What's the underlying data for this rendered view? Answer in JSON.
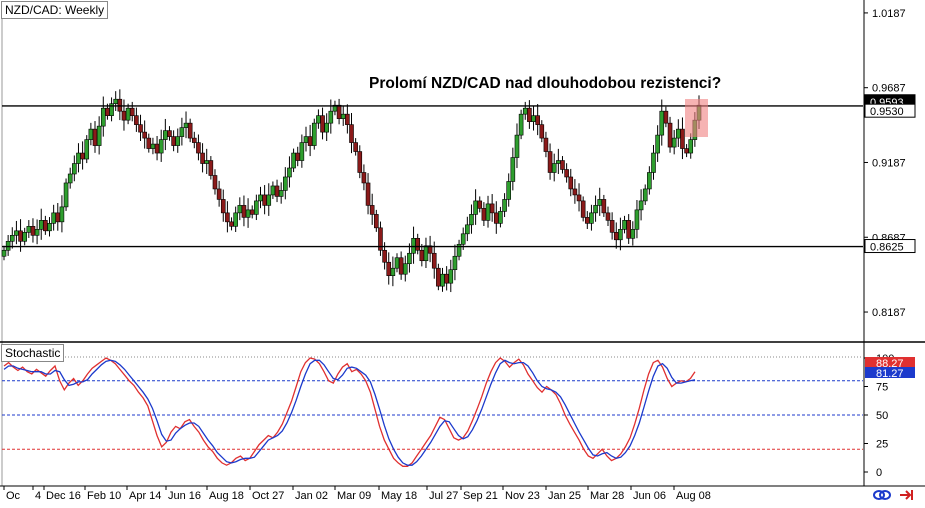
{
  "window_title": "NZD/CAD: Weekly",
  "indicator_title": "Stochastic",
  "headline": "Prolomí NZD/CAD nad dlouhodobou rezistenci?",
  "chart_data": [
    {
      "type": "candlestick",
      "title": "NZD/CAD: Weekly",
      "y_ticks": [
        "1.0187",
        "0.9687",
        "0.9187",
        "0.8687",
        "0.8187"
      ],
      "y_tick_values": [
        1.0187,
        0.9687,
        0.9187,
        0.8687,
        0.8187
      ],
      "ylim": [
        0.8,
        1.026
      ],
      "x_labels": [
        "Oc",
        "4",
        "Dec 16",
        "Feb 10",
        "Apr 14",
        "Jun 16",
        "Aug 18",
        "Oct 27",
        "Jan 02",
        "Mar 09",
        "May 18",
        "Jul 27",
        "Sep 21",
        "Nov 23",
        "Jan 25",
        "Mar 28",
        "Jun 06",
        "Aug 08"
      ],
      "price_labels": [
        {
          "text": "0.9593",
          "value": 0.9593
        },
        {
          "text": "0.9530",
          "value": 0.953
        },
        {
          "text": "0.8625",
          "value": 0.8625
        }
      ],
      "horizontal_levels": [
        0.9565,
        0.8625
      ],
      "closes": [
        0.86,
        0.866,
        0.87,
        0.873,
        0.866,
        0.872,
        0.876,
        0.87,
        0.874,
        0.88,
        0.873,
        0.878,
        0.885,
        0.879,
        0.889,
        0.905,
        0.911,
        0.918,
        0.925,
        0.921,
        0.934,
        0.941,
        0.93,
        0.943,
        0.955,
        0.95,
        0.958,
        0.961,
        0.953,
        0.947,
        0.955,
        0.95,
        0.944,
        0.939,
        0.935,
        0.928,
        0.931,
        0.925,
        0.934,
        0.94,
        0.936,
        0.93,
        0.936,
        0.942,
        0.945,
        0.935,
        0.932,
        0.925,
        0.918,
        0.92,
        0.91,
        0.901,
        0.894,
        0.885,
        0.879,
        0.876,
        0.885,
        0.89,
        0.882,
        0.887,
        0.884,
        0.893,
        0.897,
        0.89,
        0.897,
        0.903,
        0.896,
        0.9,
        0.909,
        0.915,
        0.925,
        0.92,
        0.932,
        0.936,
        0.93,
        0.945,
        0.95,
        0.939,
        0.945,
        0.953,
        0.957,
        0.948,
        0.951,
        0.944,
        0.932,
        0.926,
        0.912,
        0.905,
        0.89,
        0.884,
        0.875,
        0.86,
        0.852,
        0.843,
        0.848,
        0.855,
        0.844,
        0.851,
        0.858,
        0.868,
        0.86,
        0.853,
        0.863,
        0.858,
        0.848,
        0.836,
        0.844,
        0.838,
        0.847,
        0.856,
        0.864,
        0.871,
        0.877,
        0.884,
        0.893,
        0.888,
        0.88,
        0.891,
        0.885,
        0.878,
        0.886,
        0.894,
        0.906,
        0.922,
        0.937,
        0.951,
        0.955,
        0.946,
        0.95,
        0.944,
        0.935,
        0.926,
        0.912,
        0.918,
        0.92,
        0.914,
        0.909,
        0.901,
        0.897,
        0.893,
        0.882,
        0.878,
        0.885,
        0.89,
        0.894,
        0.885,
        0.88,
        0.872,
        0.867,
        0.874,
        0.88,
        0.868,
        0.874,
        0.887,
        0.893,
        0.901,
        0.912,
        0.925,
        0.937,
        0.953,
        0.945,
        0.929,
        0.935,
        0.941,
        0.928,
        0.925,
        0.934,
        0.947,
        0.957
      ]
    },
    {
      "type": "line",
      "title": "Stochastic",
      "y_ticks": [
        "100",
        "75",
        "50",
        "25",
        "0"
      ],
      "y_tick_values": [
        100,
        75,
        50,
        25,
        0
      ],
      "ylim": [
        0,
        100
      ],
      "levels": [
        {
          "value": 80,
          "color": "#1c3acc"
        },
        {
          "value": 50,
          "color": "#1c3acc"
        },
        {
          "value": 20,
          "color": "#e03030"
        }
      ],
      "price_labels": [
        {
          "text": "88.27",
          "value": 88.27,
          "color": "#e03030"
        },
        {
          "text": "81.27",
          "value": 81.27,
          "color": "#1c3acc"
        }
      ],
      "series": [
        {
          "color": "#e03030",
          "values": [
            93,
            96,
            92,
            89,
            92,
            88,
            86,
            90,
            87,
            84,
            89,
            93,
            80,
            72,
            78,
            82,
            76,
            80,
            86,
            91,
            94,
            97,
            100,
            98,
            95,
            90,
            85,
            80,
            76,
            70,
            65,
            58,
            45,
            32,
            22,
            26,
            35,
            40,
            38,
            44,
            46,
            40,
            35,
            28,
            22,
            18,
            12,
            8,
            6,
            8,
            12,
            14,
            10,
            12,
            18,
            24,
            28,
            32,
            30,
            35,
            42,
            52,
            62,
            75,
            88,
            96,
            100,
            99,
            95,
            88,
            80,
            78,
            86,
            92,
            95,
            88,
            90,
            86,
            80,
            70,
            55,
            40,
            28,
            20,
            12,
            8,
            5,
            5,
            8,
            14,
            20,
            26,
            32,
            40,
            48,
            46,
            38,
            30,
            28,
            30,
            36,
            45,
            55,
            66,
            78,
            88,
            96,
            100,
            97,
            92,
            96,
            99,
            94,
            86,
            80,
            74,
            70,
            75,
            72,
            68,
            60,
            50,
            42,
            35,
            28,
            20,
            14,
            12,
            16,
            20,
            14,
            10,
            12,
            16,
            22,
            30,
            42,
            56,
            72,
            86,
            96,
            98,
            92,
            82,
            75,
            78,
            80,
            79,
            82,
            88
          ]
        },
        {
          "color": "#1c3acc",
          "values": [
            90,
            93,
            93,
            91,
            90,
            89,
            88,
            88,
            88,
            86,
            86,
            89,
            88,
            81,
            76,
            77,
            79,
            79,
            81,
            86,
            90,
            94,
            97,
            98,
            97,
            94,
            90,
            85,
            80,
            75,
            70,
            64,
            56,
            45,
            33,
            27,
            28,
            34,
            38,
            41,
            43,
            43,
            40,
            34,
            28,
            23,
            17,
            13,
            9,
            8,
            9,
            11,
            12,
            12,
            13,
            18,
            23,
            28,
            30,
            32,
            36,
            43,
            52,
            63,
            75,
            86,
            95,
            98,
            98,
            94,
            88,
            82,
            81,
            85,
            91,
            92,
            91,
            88,
            85,
            79,
            68,
            55,
            41,
            29,
            20,
            13,
            8,
            6,
            6,
            9,
            14,
            20,
            26,
            33,
            40,
            45,
            44,
            38,
            32,
            29,
            31,
            37,
            45,
            55,
            66,
            77,
            87,
            95,
            98,
            96,
            95,
            96,
            96,
            93,
            87,
            80,
            75,
            73,
            72,
            70,
            66,
            59,
            51,
            43,
            35,
            28,
            21,
            15,
            14,
            16,
            17,
            14,
            12,
            13,
            17,
            23,
            32,
            43,
            57,
            71,
            84,
            93,
            95,
            91,
            83,
            78,
            78,
            79,
            80,
            81
          ]
        }
      ]
    }
  ]
}
